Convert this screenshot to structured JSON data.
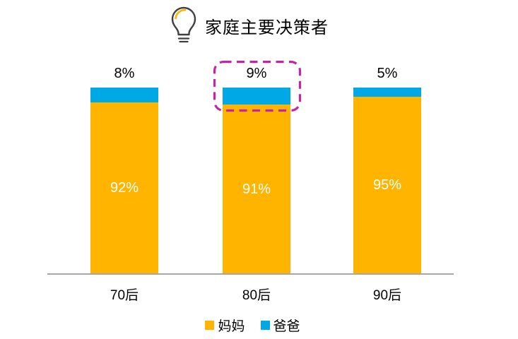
{
  "title": {
    "text": "家庭主要决策者"
  },
  "icon": {
    "name": "lightbulb-icon",
    "accent_color": "#FFB400",
    "stroke_color": "#404040"
  },
  "chart_data": {
    "type": "bar",
    "stacked": true,
    "orientation": "vertical",
    "title": "家庭主要决策者",
    "categories": [
      "70后",
      "80后",
      "90后"
    ],
    "series": [
      {
        "name": "妈妈",
        "color": "#FFB400",
        "values": [
          92,
          91,
          95
        ]
      },
      {
        "name": "爸爸",
        "color": "#00A9E6",
        "values": [
          8,
          9,
          5
        ]
      }
    ],
    "inner_labels": [
      "92%",
      "91%",
      "95%"
    ],
    "top_labels": [
      "8%",
      "9%",
      "5%"
    ],
    "ylim": [
      0,
      100
    ],
    "grid": false,
    "legend_position": "bottom",
    "axis_color": "#A6A6A6",
    "highlight": {
      "category": "80后",
      "series": "爸爸",
      "shape": "dashed-rounded-rect",
      "color": "#C026A7"
    }
  },
  "legend": {
    "items": [
      {
        "label": "妈妈",
        "color": "#FFB400"
      },
      {
        "label": "爸爸",
        "color": "#00A9E6"
      }
    ]
  }
}
